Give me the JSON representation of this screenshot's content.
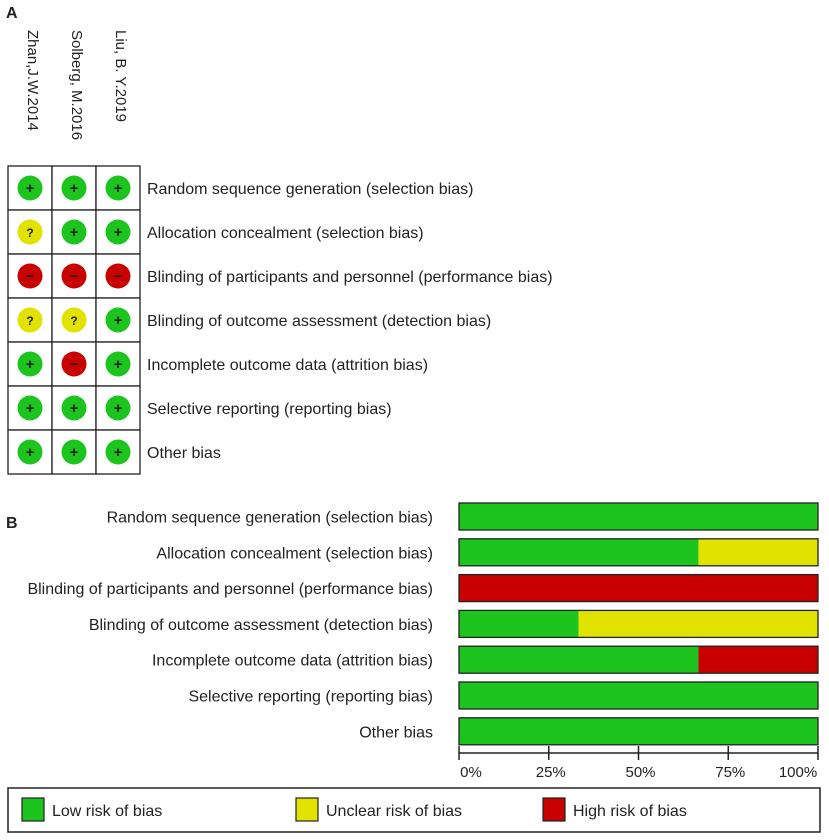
{
  "chart_data": [
    {
      "type": "table",
      "panel_label": "A",
      "studies": [
        "Zhan,J.W.2014",
        "Solberg, M.2016",
        "Liu, B. Y.2019"
      ],
      "domains": [
        "Random sequence generation (selection bias)",
        "Allocation concealment (selection bias)",
        "Blinding of participants and personnel (performance bias)",
        "Blinding of outcome assessment (detection bias)",
        "Incomplete outcome data (attrition bias)",
        "Selective reporting (reporting bias)",
        "Other bias"
      ],
      "judgements": [
        [
          "low",
          "low",
          "low"
        ],
        [
          "unclear",
          "low",
          "low"
        ],
        [
          "high",
          "high",
          "high"
        ],
        [
          "unclear",
          "unclear",
          "low"
        ],
        [
          "low",
          "high",
          "low"
        ],
        [
          "low",
          "low",
          "low"
        ],
        [
          "low",
          "low",
          "low"
        ]
      ],
      "symbols": {
        "low": "+",
        "unclear": "?",
        "high": "−"
      }
    },
    {
      "type": "bar",
      "stacked": true,
      "orientation": "horizontal",
      "panel_label": "B",
      "categories": [
        "Random sequence generation (selection bias)",
        "Allocation concealment (selection bias)",
        "Blinding of participants and personnel (performance bias)",
        "Blinding of outcome assessment (detection bias)",
        "Incomplete outcome data (attrition bias)",
        "Selective reporting (reporting bias)",
        "Other bias"
      ],
      "series": [
        {
          "name": "Low risk of bias",
          "key": "low",
          "values": [
            100,
            66.7,
            0,
            33.3,
            66.7,
            100,
            100
          ]
        },
        {
          "name": "Unclear risk of bias",
          "key": "unclear",
          "values": [
            0,
            33.3,
            0,
            66.7,
            0,
            0,
            0
          ]
        },
        {
          "name": "High risk of bias",
          "key": "high",
          "values": [
            0,
            0,
            100,
            0,
            33.3,
            0,
            0
          ]
        }
      ],
      "xlim": [
        0,
        100
      ],
      "xticks": [
        "0%",
        "25%",
        "50%",
        "75%",
        "100%"
      ],
      "legend_placement": "bottom"
    }
  ],
  "colors": {
    "low": "#1ec41e",
    "unclear": "#e2e200",
    "high": "#c80000"
  }
}
